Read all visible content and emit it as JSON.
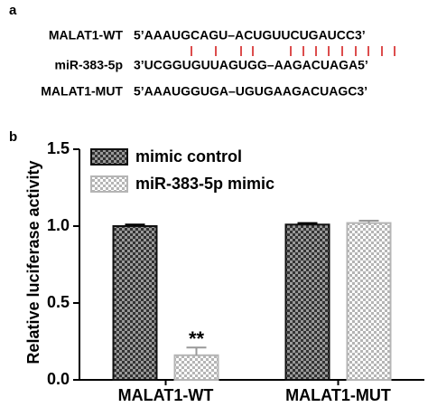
{
  "panel_a": {
    "label": "a",
    "rows": [
      {
        "name": "MALAT1-WT",
        "sequence": "5’AAAUGCAGU–ACUGUUCUGAUCC3’"
      },
      {
        "name": "miR-383-5p",
        "sequence": "3’UCGGUGUUAGUGG–AAGACUAGA5’"
      },
      {
        "name": "MALAT1-MUT",
        "sequence": "5’AAAUGGUGA–UGUGAAGACUAGC3’"
      }
    ]
  },
  "panel_b": {
    "label": "b"
  },
  "chart_data": {
    "type": "bar",
    "y_label": "Relative luciferase activity",
    "categories": [
      "MALAT1-WT",
      "MALAT1-MUT"
    ],
    "series": [
      {
        "name": "mimic control",
        "color": "#333333",
        "values": [
          1.0,
          1.01
        ],
        "errors": [
          0.01,
          0.01
        ]
      },
      {
        "name": "miR-383-5p mimic",
        "color": "#b5b5b5",
        "values": [
          0.16,
          1.02
        ],
        "errors": [
          0.05,
          0.015
        ]
      }
    ],
    "annotation": "**",
    "ylim": [
      0,
      1.5
    ],
    "yticks": [
      {
        "value": 0,
        "label": "0.0"
      },
      {
        "value": 0.5,
        "label": "0.5"
      },
      {
        "value": 1,
        "label": "1.0"
      },
      {
        "value": 1.5,
        "label": "1.5"
      }
    ],
    "legend": "top-left"
  }
}
